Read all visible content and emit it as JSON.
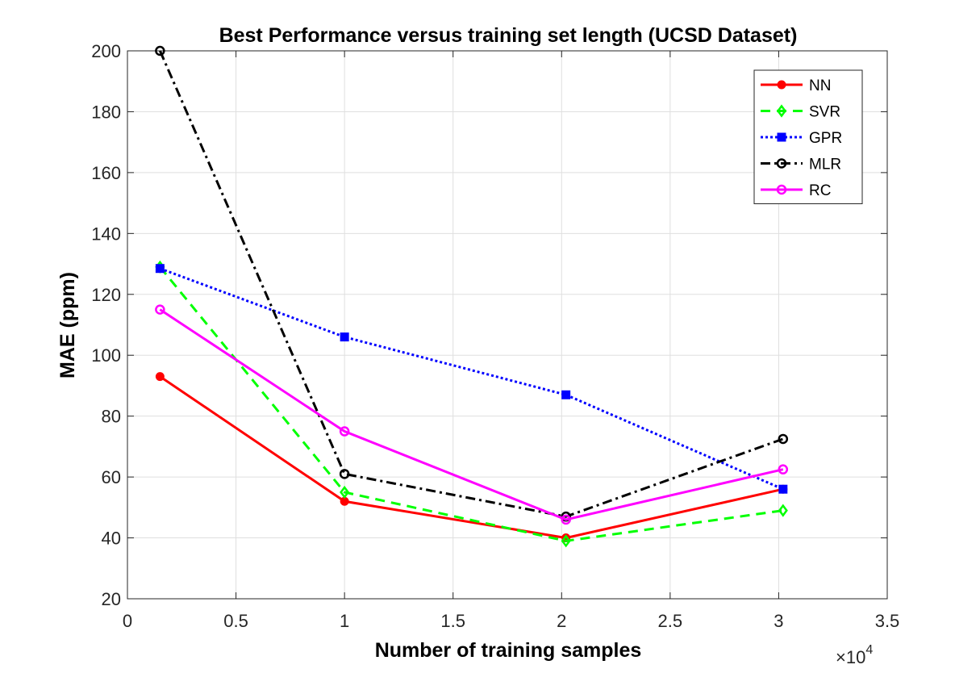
{
  "chart_data": {
    "type": "line",
    "title": "Best Performance versus training set length (UCSD Dataset)",
    "xlabel": "Number of training samples",
    "ylabel": "MAE (ppm)",
    "x_exponent_label": "×10",
    "x_exponent_power": "4",
    "xlim": [
      0,
      3.5
    ],
    "ylim": [
      20,
      200
    ],
    "xticks": [
      0,
      0.5,
      1,
      1.5,
      2,
      2.5,
      3,
      3.5
    ],
    "xtick_labels": [
      "0",
      "0.5",
      "1",
      "1.5",
      "2",
      "2.5",
      "3",
      "3.5"
    ],
    "yticks": [
      20,
      40,
      60,
      80,
      100,
      120,
      140,
      160,
      180,
      200
    ],
    "ytick_labels": [
      "20",
      "40",
      "60",
      "80",
      "100",
      "120",
      "140",
      "160",
      "180",
      "200"
    ],
    "grid": true,
    "legend_position": "top-right",
    "series": [
      {
        "name": "NN",
        "color": "#ff0000",
        "dash": "solid",
        "marker": "filled-circle",
        "x": [
          0.15,
          1.0,
          2.02,
          3.02
        ],
        "y": [
          93,
          52,
          40,
          56
        ]
      },
      {
        "name": "SVR",
        "color": "#00ff00",
        "dash": "dashed",
        "marker": "diamond",
        "x": [
          0.15,
          1.0,
          2.02,
          3.02
        ],
        "y": [
          129,
          55,
          39,
          49
        ]
      },
      {
        "name": "GPR",
        "color": "#0000ff",
        "dash": "dotted",
        "marker": "square",
        "x": [
          0.15,
          1.0,
          2.02,
          3.02
        ],
        "y": [
          128.5,
          106,
          87,
          56
        ]
      },
      {
        "name": "MLR",
        "color": "#000000",
        "dash": "dashdot",
        "marker": "circle",
        "x": [
          0.15,
          1.0,
          2.02,
          3.02
        ],
        "y": [
          200,
          61,
          47,
          72.5
        ]
      },
      {
        "name": "RC",
        "color": "#ff00ff",
        "dash": "solid",
        "marker": "circle",
        "x": [
          0.15,
          1.0,
          2.02,
          3.02
        ],
        "y": [
          115,
          75,
          46,
          62.5
        ]
      }
    ]
  }
}
